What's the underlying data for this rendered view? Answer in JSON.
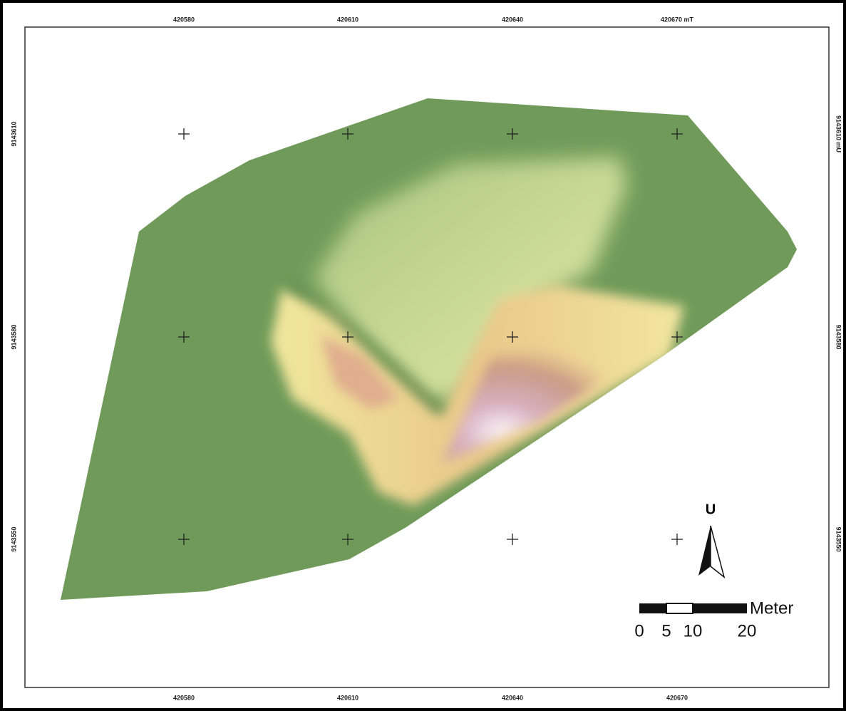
{
  "map_frame": {
    "top_labels": [
      "420580",
      "420610",
      "420640",
      "420670 mT"
    ],
    "bottom_labels": [
      "420580",
      "420610",
      "420640",
      "420670"
    ],
    "left_labels": [
      "9143610",
      "9143580",
      "9143550"
    ],
    "right_labels": [
      "9143610 mU",
      "9143580",
      "9143550"
    ]
  },
  "north_arrow": {
    "label": "U"
  },
  "scale_bar": {
    "unit": "Meter",
    "labels": [
      "0",
      "5",
      "10",
      "20"
    ]
  }
}
